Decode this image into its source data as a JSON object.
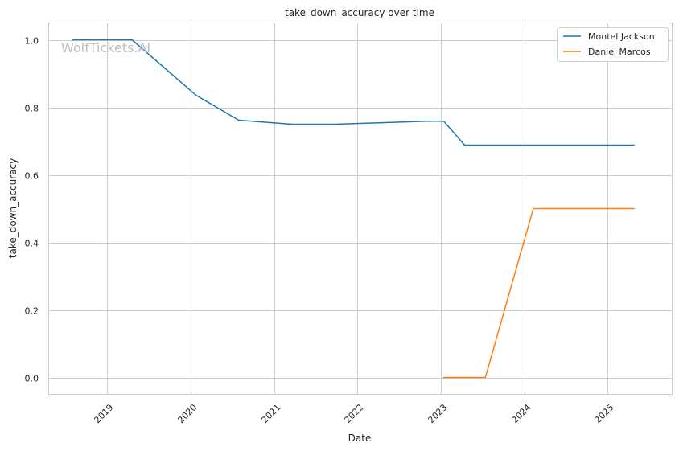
{
  "watermark": "WolfTickets.AI",
  "chart_data": {
    "type": "line",
    "title": "take_down_accuracy over time",
    "xlabel": "Date",
    "ylabel": "take_down_accuracy",
    "x_ticks": [
      "2019",
      "2020",
      "2021",
      "2022",
      "2023",
      "2024",
      "2025"
    ],
    "y_ticks": [
      "0.0",
      "0.2",
      "0.4",
      "0.6",
      "0.8",
      "1.0"
    ],
    "xlim": [
      "2018-04-20",
      "2025-10-10"
    ],
    "ylim": [
      -0.05,
      1.05
    ],
    "grid": true,
    "legend_position": "top-right",
    "series": [
      {
        "name": "Montel Jackson",
        "color": "#1f77b4",
        "points": [
          [
            "2018-08-04",
            1.0
          ],
          [
            "2019-04-20",
            1.0
          ],
          [
            "2020-01-25",
            0.836
          ],
          [
            "2020-07-30",
            0.762
          ],
          [
            "2021-03-20",
            0.75
          ],
          [
            "2021-09-25",
            0.75
          ],
          [
            "2022-11-05",
            0.759
          ],
          [
            "2023-01-14",
            0.759
          ],
          [
            "2023-04-15",
            0.688
          ],
          [
            "2025-04-26",
            0.688
          ]
        ]
      },
      {
        "name": "Daniel Marcos",
        "color": "#ff7f0e",
        "points": [
          [
            "2023-01-14",
            0.0
          ],
          [
            "2023-07-15",
            0.0
          ],
          [
            "2024-02-10",
            0.5
          ],
          [
            "2025-04-26",
            0.5
          ]
        ]
      }
    ]
  }
}
